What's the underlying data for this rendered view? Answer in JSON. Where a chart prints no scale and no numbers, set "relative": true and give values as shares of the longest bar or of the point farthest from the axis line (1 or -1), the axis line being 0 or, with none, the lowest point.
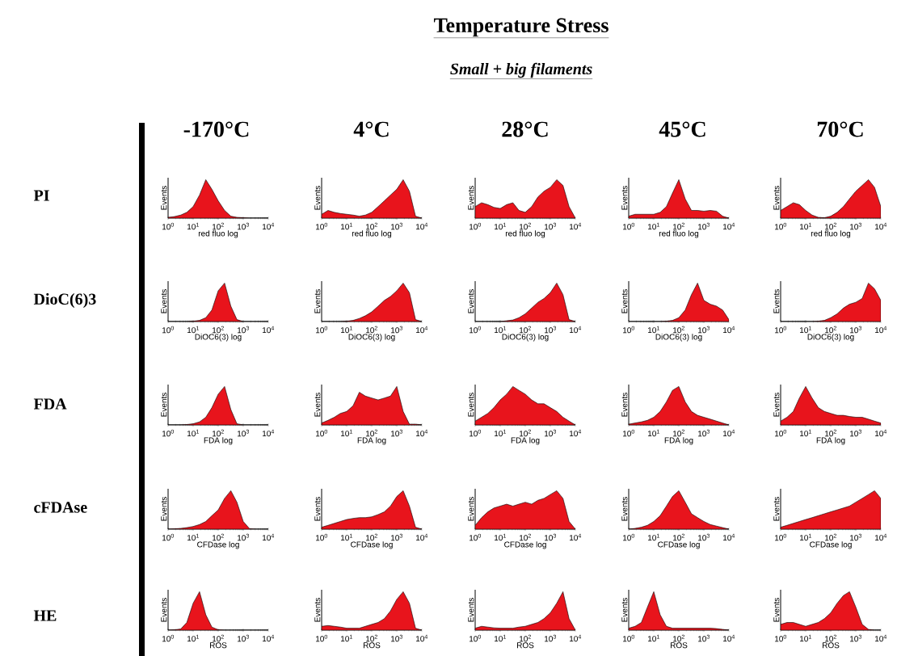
{
  "chart_data": [
    {
      "type": "other",
      "title": "Temperature Stress",
      "subtitle": "Small + big filaments",
      "annotations": [
        "-170°C",
        "4°C",
        "28°C",
        "45°C",
        "70°C",
        "PI",
        "DioC(6)3",
        "FDA",
        "cFDAse",
        "HE"
      ]
    },
    {
      "type": "area",
      "relative": true,
      "color": "#e8141c",
      "xlabel": "red fluo log",
      "ylabel": "Events",
      "log": "x",
      "tick_labels": "x",
      "xlim": [
        1,
        10000
      ],
      "xticks": [
        {
          "value": 1,
          "label": "10$^{0}$"
        },
        {
          "value": 10,
          "label": "10$^{1}$"
        },
        {
          "value": 100,
          "label": "10$^{2}$"
        },
        {
          "value": 1000,
          "label": "10$^{3}$"
        },
        {
          "value": 10000,
          "label": "10$^{4}$"
        }
      ],
      "x": [
        1,
        1.8,
        3.2,
        5.6,
        10,
        18,
        32,
        56,
        100,
        180,
        320,
        560,
        1000,
        1800,
        3200,
        5600,
        10000
      ],
      "values": [
        0.02,
        0.04,
        0.08,
        0.15,
        0.3,
        0.6,
        1,
        0.75,
        0.45,
        0.2,
        0.05,
        0.02,
        0.01,
        0,
        0,
        0,
        0
      ]
    },
    {
      "type": "area",
      "relative": true,
      "color": "#e8141c",
      "xlabel": "red fluo log",
      "ylabel": "Events",
      "log": "x",
      "tick_labels": "x",
      "xlim": [
        1,
        10000
      ],
      "xticks": [
        {
          "value": 1,
          "label": "10$^{0}$"
        },
        {
          "value": 10,
          "label": "10$^{1}$"
        },
        {
          "value": 100,
          "label": "10$^{2}$"
        },
        {
          "value": 1000,
          "label": "10$^{3}$"
        },
        {
          "value": 10000,
          "label": "10$^{4}$"
        }
      ],
      "x": [
        1,
        1.8,
        3.2,
        5.6,
        10,
        18,
        32,
        56,
        100,
        180,
        320,
        560,
        1000,
        1800,
        3200,
        5600,
        10000
      ],
      "values": [
        0.1,
        0.2,
        0.15,
        0.12,
        0.1,
        0.08,
        0.05,
        0.08,
        0.15,
        0.3,
        0.45,
        0.6,
        0.75,
        1,
        0.7,
        0.05,
        0
      ]
    },
    {
      "type": "area",
      "relative": true,
      "color": "#e8141c",
      "xlabel": "red fluo log",
      "ylabel": "Events",
      "log": "x",
      "tick_labels": "x",
      "xlim": [
        1,
        10000
      ],
      "xticks": [
        {
          "value": 1,
          "label": "10$^{0}$"
        },
        {
          "value": 10,
          "label": "10$^{1}$"
        },
        {
          "value": 100,
          "label": "10$^{2}$"
        },
        {
          "value": 1000,
          "label": "10$^{3}$"
        },
        {
          "value": 10000,
          "label": "10$^{4}$"
        }
      ],
      "x": [
        1,
        1.8,
        3.2,
        5.6,
        10,
        18,
        32,
        56,
        100,
        180,
        320,
        560,
        1000,
        1800,
        3200,
        5600,
        10000
      ],
      "values": [
        0.3,
        0.4,
        0.35,
        0.28,
        0.25,
        0.35,
        0.4,
        0.2,
        0.15,
        0.3,
        0.55,
        0.7,
        0.8,
        1,
        0.85,
        0.3,
        0
      ]
    },
    {
      "type": "area",
      "relative": true,
      "color": "#e8141c",
      "xlabel": "red fluo log",
      "ylabel": "Events",
      "log": "x",
      "tick_labels": "x",
      "xlim": [
        1,
        10000
      ],
      "xticks": [
        {
          "value": 1,
          "label": "10$^{0}$"
        },
        {
          "value": 10,
          "label": "10$^{1}$"
        },
        {
          "value": 100,
          "label": "10$^{2}$"
        },
        {
          "value": 1000,
          "label": "10$^{3}$"
        },
        {
          "value": 10000,
          "label": "10$^{4}$"
        }
      ],
      "x": [
        1,
        1.8,
        3.2,
        5.6,
        10,
        18,
        32,
        56,
        100,
        180,
        320,
        560,
        1000,
        1800,
        3200,
        5600,
        10000
      ],
      "values": [
        0.05,
        0.1,
        0.1,
        0.1,
        0.1,
        0.15,
        0.3,
        0.65,
        1,
        0.5,
        0.2,
        0.2,
        0.18,
        0.2,
        0.18,
        0.05,
        0
      ]
    },
    {
      "type": "area",
      "relative": true,
      "color": "#e8141c",
      "xlabel": "red fluo log",
      "ylabel": "Events",
      "log": "x",
      "tick_labels": "x",
      "xlim": [
        1,
        10000
      ],
      "xticks": [
        {
          "value": 1,
          "label": "10$^{0}$"
        },
        {
          "value": 10,
          "label": "10$^{1}$"
        },
        {
          "value": 100,
          "label": "10$^{2}$"
        },
        {
          "value": 1000,
          "label": "10$^{3}$"
        },
        {
          "value": 10000,
          "label": "10$^{4}$"
        }
      ],
      "x": [
        1,
        1.8,
        3.2,
        5.6,
        10,
        18,
        32,
        56,
        100,
        180,
        320,
        560,
        1000,
        1800,
        3200,
        5600,
        10000
      ],
      "values": [
        0.2,
        0.3,
        0.4,
        0.35,
        0.2,
        0.08,
        0.02,
        0.01,
        0.05,
        0.15,
        0.3,
        0.5,
        0.7,
        0.85,
        1,
        0.8,
        0.3
      ]
    },
    {
      "type": "area",
      "relative": true,
      "color": "#e8141c",
      "xlabel": "DiOC6(3) log",
      "ylabel": "Events",
      "log": "x",
      "tick_labels": "x",
      "xlim": [
        1,
        10000
      ],
      "xticks": [
        {
          "value": 1,
          "label": "10$^{0}$"
        },
        {
          "value": 10,
          "label": "10$^{1}$"
        },
        {
          "value": 100,
          "label": "10$^{2}$"
        },
        {
          "value": 1000,
          "label": "10$^{3}$"
        },
        {
          "value": 10000,
          "label": "10$^{4}$"
        }
      ],
      "x": [
        1,
        1.8,
        3.2,
        5.6,
        10,
        18,
        32,
        56,
        100,
        180,
        320,
        560,
        1000,
        1800,
        3200,
        5600,
        10000
      ],
      "values": [
        0,
        0,
        0,
        0,
        0.01,
        0.03,
        0.1,
        0.3,
        0.8,
        1,
        0.4,
        0.05,
        0,
        0,
        0,
        0,
        0
      ]
    },
    {
      "type": "area",
      "relative": true,
      "color": "#e8141c",
      "xlabel": "DiOC6(3) log",
      "ylabel": "Events",
      "log": "x",
      "tick_labels": "x",
      "xlim": [
        1,
        10000
      ],
      "xticks": [
        {
          "value": 1,
          "label": "10$^{0}$"
        },
        {
          "value": 10,
          "label": "10$^{1}$"
        },
        {
          "value": 100,
          "label": "10$^{2}$"
        },
        {
          "value": 1000,
          "label": "10$^{3}$"
        },
        {
          "value": 10000,
          "label": "10$^{4}$"
        }
      ],
      "x": [
        1,
        1.8,
        3.2,
        5.6,
        10,
        18,
        32,
        56,
        100,
        180,
        320,
        560,
        1000,
        1800,
        3200,
        5600,
        10000
      ],
      "values": [
        0,
        0,
        0,
        0,
        0.01,
        0.03,
        0.08,
        0.15,
        0.25,
        0.4,
        0.55,
        0.65,
        0.8,
        1,
        0.75,
        0.05,
        0
      ]
    },
    {
      "type": "area",
      "relative": true,
      "color": "#e8141c",
      "xlabel": "DiOC6(3) log",
      "ylabel": "Events",
      "log": "x",
      "tick_labels": "x",
      "xlim": [
        1,
        10000
      ],
      "xticks": [
        {
          "value": 1,
          "label": "10$^{0}$"
        },
        {
          "value": 10,
          "label": "10$^{1}$"
        },
        {
          "value": 100,
          "label": "10$^{2}$"
        },
        {
          "value": 1000,
          "label": "10$^{3}$"
        },
        {
          "value": 10000,
          "label": "10$^{4}$"
        }
      ],
      "x": [
        1,
        1.8,
        3.2,
        5.6,
        10,
        18,
        32,
        56,
        100,
        180,
        320,
        560,
        1000,
        1800,
        3200,
        5600,
        10000
      ],
      "values": [
        0,
        0,
        0,
        0,
        0,
        0.02,
        0.04,
        0.1,
        0.2,
        0.35,
        0.5,
        0.6,
        0.75,
        1,
        0.7,
        0.05,
        0
      ]
    },
    {
      "type": "area",
      "relative": true,
      "color": "#e8141c",
      "xlabel": "DiOC6(3) log",
      "ylabel": "Events",
      "log": "x",
      "tick_labels": "x",
      "xlim": [
        1,
        10000
      ],
      "xticks": [
        {
          "value": 1,
          "label": "10$^{0}$"
        },
        {
          "value": 10,
          "label": "10$^{1}$"
        },
        {
          "value": 100,
          "label": "10$^{2}$"
        },
        {
          "value": 1000,
          "label": "10$^{3}$"
        },
        {
          "value": 10000,
          "label": "10$^{4}$"
        }
      ],
      "x": [
        1,
        1.8,
        3.2,
        5.6,
        10,
        18,
        32,
        56,
        100,
        180,
        320,
        560,
        1000,
        1800,
        3200,
        5600,
        10000
      ],
      "values": [
        0,
        0,
        0,
        0,
        0,
        0,
        0.01,
        0.03,
        0.1,
        0.3,
        0.7,
        1,
        0.55,
        0.45,
        0.4,
        0.3,
        0.05
      ]
    },
    {
      "type": "area",
      "relative": true,
      "color": "#e8141c",
      "xlabel": "DiOC6(3) log",
      "ylabel": "Events",
      "log": "x",
      "tick_labels": "x",
      "xlim": [
        1,
        10000
      ],
      "xticks": [
        {
          "value": 1,
          "label": "10$^{0}$"
        },
        {
          "value": 10,
          "label": "10$^{1}$"
        },
        {
          "value": 100,
          "label": "10$^{2}$"
        },
        {
          "value": 1000,
          "label": "10$^{3}$"
        },
        {
          "value": 10000,
          "label": "10$^{4}$"
        }
      ],
      "x": [
        1,
        1.8,
        3.2,
        5.6,
        10,
        18,
        32,
        56,
        100,
        180,
        320,
        560,
        1000,
        1800,
        3200,
        5600,
        10000
      ],
      "values": [
        0,
        0,
        0,
        0,
        0,
        0,
        0.01,
        0.03,
        0.1,
        0.2,
        0.35,
        0.45,
        0.5,
        0.6,
        1,
        0.85,
        0.55
      ]
    },
    {
      "type": "area",
      "relative": true,
      "color": "#e8141c",
      "xlabel": "FDA log",
      "ylabel": "Events",
      "log": "x",
      "tick_labels": "x",
      "xlim": [
        1,
        10000
      ],
      "xticks": [
        {
          "value": 1,
          "label": "10$^{0}$"
        },
        {
          "value": 10,
          "label": "10$^{1}$"
        },
        {
          "value": 100,
          "label": "10$^{2}$"
        },
        {
          "value": 1000,
          "label": "10$^{3}$"
        },
        {
          "value": 10000,
          "label": "10$^{4}$"
        }
      ],
      "x": [
        1,
        1.8,
        3.2,
        5.6,
        10,
        18,
        32,
        56,
        100,
        180,
        320,
        560,
        1000,
        1800,
        3200,
        5600,
        10000
      ],
      "values": [
        0,
        0,
        0,
        0.01,
        0.03,
        0.08,
        0.2,
        0.45,
        0.8,
        1,
        0.4,
        0.03,
        0,
        0,
        0,
        0,
        0
      ]
    },
    {
      "type": "area",
      "relative": true,
      "color": "#e8141c",
      "xlabel": "FDA log",
      "ylabel": "Events",
      "log": "x",
      "tick_labels": "x",
      "xlim": [
        1,
        10000
      ],
      "xticks": [
        {
          "value": 1,
          "label": "10$^{0}$"
        },
        {
          "value": 10,
          "label": "10$^{1}$"
        },
        {
          "value": 100,
          "label": "10$^{2}$"
        },
        {
          "value": 1000,
          "label": "10$^{3}$"
        },
        {
          "value": 10000,
          "label": "10$^{4}$"
        }
      ],
      "x": [
        1,
        1.8,
        3.2,
        5.6,
        10,
        18,
        32,
        56,
        100,
        180,
        320,
        560,
        1000,
        1800,
        3200,
        5600,
        10000
      ],
      "values": [
        0.05,
        0.12,
        0.2,
        0.3,
        0.35,
        0.5,
        0.85,
        0.75,
        0.7,
        0.65,
        0.7,
        0.75,
        1,
        0.35,
        0.02,
        0.02,
        0
      ]
    },
    {
      "type": "area",
      "relative": true,
      "color": "#e8141c",
      "xlabel": "FDA log",
      "ylabel": "Events",
      "log": "x",
      "tick_labels": "x",
      "xlim": [
        1,
        10000
      ],
      "xticks": [
        {
          "value": 1,
          "label": "10$^{0}$"
        },
        {
          "value": 10,
          "label": "10$^{1}$"
        },
        {
          "value": 100,
          "label": "10$^{2}$"
        },
        {
          "value": 1000,
          "label": "10$^{3}$"
        },
        {
          "value": 10000,
          "label": "10$^{4}$"
        }
      ],
      "x": [
        1,
        1.8,
        3.2,
        5.6,
        10,
        18,
        32,
        56,
        100,
        180,
        320,
        560,
        1000,
        1800,
        3200,
        5600,
        10000
      ],
      "values": [
        0.1,
        0.2,
        0.3,
        0.45,
        0.65,
        0.8,
        1,
        0.9,
        0.8,
        0.65,
        0.55,
        0.55,
        0.45,
        0.35,
        0.2,
        0.1,
        0
      ]
    },
    {
      "type": "area",
      "relative": true,
      "color": "#e8141c",
      "xlabel": "FDA log",
      "ylabel": "Events",
      "log": "x",
      "tick_labels": "x",
      "xlim": [
        1,
        10000
      ],
      "xticks": [
        {
          "value": 1,
          "label": "10$^{0}$"
        },
        {
          "value": 10,
          "label": "10$^{1}$"
        },
        {
          "value": 100,
          "label": "10$^{2}$"
        },
        {
          "value": 1000,
          "label": "10$^{3}$"
        },
        {
          "value": 10000,
          "label": "10$^{4}$"
        }
      ],
      "x": [
        1,
        1.8,
        3.2,
        5.6,
        10,
        18,
        32,
        56,
        100,
        180,
        320,
        560,
        1000,
        1800,
        3200,
        5600,
        10000
      ],
      "values": [
        0.02,
        0.05,
        0.08,
        0.12,
        0.2,
        0.35,
        0.6,
        0.9,
        1,
        0.6,
        0.35,
        0.25,
        0.2,
        0.15,
        0.1,
        0.05,
        0
      ]
    },
    {
      "type": "area",
      "relative": true,
      "color": "#e8141c",
      "xlabel": "FDA log",
      "ylabel": "Events",
      "log": "x",
      "tick_labels": "x",
      "xlim": [
        1,
        10000
      ],
      "xticks": [
        {
          "value": 1,
          "label": "10$^{0}$"
        },
        {
          "value": 10,
          "label": "10$^{1}$"
        },
        {
          "value": 100,
          "label": "10$^{2}$"
        },
        {
          "value": 1000,
          "label": "10$^{3}$"
        },
        {
          "value": 10000,
          "label": "10$^{4}$"
        }
      ],
      "x": [
        1,
        1.8,
        3.2,
        5.6,
        10,
        18,
        32,
        56,
        100,
        180,
        320,
        560,
        1000,
        1800,
        3200,
        5600,
        10000
      ],
      "values": [
        0.1,
        0.2,
        0.35,
        0.7,
        1,
        0.7,
        0.45,
        0.35,
        0.3,
        0.25,
        0.25,
        0.22,
        0.2,
        0.2,
        0.15,
        0.1,
        0.05
      ]
    },
    {
      "type": "area",
      "relative": true,
      "color": "#e8141c",
      "xlabel": "CFDase log",
      "ylabel": "Events",
      "log": "x",
      "tick_labels": "x",
      "xlim": [
        1,
        10000
      ],
      "xticks": [
        {
          "value": 1,
          "label": "10$^{0}$"
        },
        {
          "value": 10,
          "label": "10$^{1}$"
        },
        {
          "value": 100,
          "label": "10$^{2}$"
        },
        {
          "value": 1000,
          "label": "10$^{3}$"
        },
        {
          "value": 10000,
          "label": "10$^{4}$"
        }
      ],
      "x": [
        1,
        1.8,
        3.2,
        5.6,
        10,
        18,
        32,
        56,
        100,
        180,
        320,
        560,
        1000,
        1800,
        3200,
        5600,
        10000
      ],
      "values": [
        0,
        0.01,
        0.02,
        0.04,
        0.07,
        0.12,
        0.2,
        0.35,
        0.5,
        0.8,
        1,
        0.7,
        0.2,
        0.01,
        0,
        0,
        0
      ]
    },
    {
      "type": "area",
      "relative": true,
      "color": "#e8141c",
      "xlabel": "CFDase log",
      "ylabel": "Events",
      "log": "x",
      "tick_labels": "x",
      "xlim": [
        1,
        10000
      ],
      "xticks": [
        {
          "value": 1,
          "label": "10$^{0}$"
        },
        {
          "value": 10,
          "label": "10$^{1}$"
        },
        {
          "value": 100,
          "label": "10$^{2}$"
        },
        {
          "value": 1000,
          "label": "10$^{3}$"
        },
        {
          "value": 10000,
          "label": "10$^{4}$"
        }
      ],
      "x": [
        1,
        1.8,
        3.2,
        5.6,
        10,
        18,
        32,
        56,
        100,
        180,
        320,
        560,
        1000,
        1800,
        3200,
        5600,
        10000
      ],
      "values": [
        0.05,
        0.1,
        0.15,
        0.2,
        0.25,
        0.28,
        0.3,
        0.3,
        0.32,
        0.38,
        0.45,
        0.6,
        0.85,
        1,
        0.6,
        0.05,
        0
      ]
    },
    {
      "type": "area",
      "relative": true,
      "color": "#e8141c",
      "xlabel": "CFDase log",
      "ylabel": "Events",
      "log": "x",
      "tick_labels": "x",
      "xlim": [
        1,
        10000
      ],
      "xticks": [
        {
          "value": 1,
          "label": "10$^{0}$"
        },
        {
          "value": 10,
          "label": "10$^{1}$"
        },
        {
          "value": 100,
          "label": "10$^{2}$"
        },
        {
          "value": 1000,
          "label": "10$^{3}$"
        },
        {
          "value": 10000,
          "label": "10$^{4}$"
        }
      ],
      "x": [
        1,
        1.8,
        3.2,
        5.6,
        10,
        18,
        32,
        56,
        100,
        180,
        320,
        560,
        1000,
        1800,
        3200,
        5600,
        10000
      ],
      "values": [
        0.1,
        0.3,
        0.45,
        0.55,
        0.6,
        0.65,
        0.6,
        0.65,
        0.7,
        0.65,
        0.75,
        0.8,
        0.9,
        1,
        0.8,
        0.2,
        0
      ]
    },
    {
      "type": "area",
      "relative": true,
      "color": "#e8141c",
      "xlabel": "CFDase log",
      "ylabel": "Events",
      "log": "x",
      "tick_labels": "x",
      "xlim": [
        1,
        10000
      ],
      "xticks": [
        {
          "value": 1,
          "label": "10$^{0}$"
        },
        {
          "value": 10,
          "label": "10$^{1}$"
        },
        {
          "value": 100,
          "label": "10$^{2}$"
        },
        {
          "value": 1000,
          "label": "10$^{3}$"
        },
        {
          "value": 10000,
          "label": "10$^{4}$"
        }
      ],
      "x": [
        1,
        1.8,
        3.2,
        5.6,
        10,
        18,
        32,
        56,
        100,
        180,
        320,
        560,
        1000,
        1800,
        3200,
        5600,
        10000
      ],
      "values": [
        0,
        0.02,
        0.05,
        0.1,
        0.2,
        0.35,
        0.6,
        0.85,
        1,
        0.7,
        0.4,
        0.3,
        0.2,
        0.12,
        0.08,
        0.04,
        0
      ]
    },
    {
      "type": "area",
      "relative": true,
      "color": "#e8141c",
      "xlabel": "CFDase log",
      "ylabel": "Events",
      "log": "x",
      "tick_labels": "x",
      "xlim": [
        1,
        10000
      ],
      "xticks": [
        {
          "value": 1,
          "label": "10$^{0}$"
        },
        {
          "value": 10,
          "label": "10$^{1}$"
        },
        {
          "value": 100,
          "label": "10$^{2}$"
        },
        {
          "value": 1000,
          "label": "10$^{3}$"
        },
        {
          "value": 10000,
          "label": "10$^{4}$"
        }
      ],
      "x": [
        1,
        1.8,
        3.2,
        5.6,
        10,
        18,
        32,
        56,
        100,
        180,
        320,
        560,
        1000,
        1800,
        3200,
        5600,
        10000
      ],
      "values": [
        0.05,
        0.1,
        0.15,
        0.2,
        0.25,
        0.3,
        0.35,
        0.4,
        0.45,
        0.5,
        0.55,
        0.6,
        0.7,
        0.8,
        0.9,
        1,
        0.8
      ]
    },
    {
      "type": "area",
      "relative": true,
      "color": "#e8141c",
      "xlabel": "ROS",
      "ylabel": "Events",
      "log": "x",
      "tick_labels": "x",
      "xlim": [
        1,
        10000
      ],
      "xticks": [
        {
          "value": 1,
          "label": "10$^{0}$"
        },
        {
          "value": 10,
          "label": "10$^{1}$"
        },
        {
          "value": 100,
          "label": "10$^{2}$"
        },
        {
          "value": 1000,
          "label": "10$^{3}$"
        },
        {
          "value": 10000,
          "label": "10$^{4}$"
        }
      ],
      "x": [
        1,
        1.8,
        3.2,
        5.6,
        10,
        18,
        32,
        56,
        100,
        180,
        320,
        560,
        1000,
        1800,
        3200,
        5600,
        10000
      ],
      "values": [
        0,
        0.01,
        0.03,
        0.2,
        0.7,
        1,
        0.4,
        0.08,
        0.01,
        0,
        0,
        0,
        0,
        0,
        0,
        0,
        0
      ]
    },
    {
      "type": "area",
      "relative": true,
      "color": "#e8141c",
      "xlabel": "ROS",
      "ylabel": "Events",
      "log": "x",
      "tick_labels": "x",
      "xlim": [
        1,
        10000
      ],
      "xticks": [
        {
          "value": 1,
          "label": "10$^{0}$"
        },
        {
          "value": 10,
          "label": "10$^{1}$"
        },
        {
          "value": 100,
          "label": "10$^{2}$"
        },
        {
          "value": 1000,
          "label": "10$^{3}$"
        },
        {
          "value": 10000,
          "label": "10$^{4}$"
        }
      ],
      "x": [
        1,
        1.8,
        3.2,
        5.6,
        10,
        18,
        32,
        56,
        100,
        180,
        320,
        560,
        1000,
        1800,
        3200,
        5600,
        10000
      ],
      "values": [
        0.1,
        0.12,
        0.1,
        0.08,
        0.05,
        0.05,
        0.05,
        0.1,
        0.15,
        0.2,
        0.3,
        0.5,
        0.8,
        1,
        0.7,
        0.05,
        0
      ]
    },
    {
      "type": "area",
      "relative": true,
      "color": "#e8141c",
      "xlabel": "ROS",
      "ylabel": "Events",
      "log": "x",
      "tick_labels": "x",
      "xlim": [
        1,
        10000
      ],
      "xticks": [
        {
          "value": 1,
          "label": "10$^{0}$"
        },
        {
          "value": 10,
          "label": "10$^{1}$"
        },
        {
          "value": 100,
          "label": "10$^{2}$"
        },
        {
          "value": 1000,
          "label": "10$^{3}$"
        },
        {
          "value": 10000,
          "label": "10$^{4}$"
        }
      ],
      "x": [
        1,
        1.8,
        3.2,
        5.6,
        10,
        18,
        32,
        56,
        100,
        180,
        320,
        560,
        1000,
        1800,
        3200,
        5600,
        10000
      ],
      "values": [
        0.05,
        0.1,
        0.08,
        0.06,
        0.05,
        0.05,
        0.05,
        0.08,
        0.1,
        0.15,
        0.2,
        0.3,
        0.45,
        0.7,
        1,
        0.3,
        0
      ]
    },
    {
      "type": "area",
      "relative": true,
      "color": "#e8141c",
      "xlabel": "ROS",
      "ylabel": "Events",
      "log": "x",
      "tick_labels": "x",
      "xlim": [
        1,
        10000
      ],
      "xticks": [
        {
          "value": 1,
          "label": "10$^{0}$"
        },
        {
          "value": 10,
          "label": "10$^{1}$"
        },
        {
          "value": 100,
          "label": "10$^{2}$"
        },
        {
          "value": 1000,
          "label": "10$^{3}$"
        },
        {
          "value": 10000,
          "label": "10$^{4}$"
        }
      ],
      "x": [
        1,
        1.8,
        3.2,
        5.6,
        10,
        18,
        32,
        56,
        100,
        180,
        320,
        560,
        1000,
        1800,
        3200,
        5600,
        10000
      ],
      "values": [
        0.05,
        0.1,
        0.2,
        0.6,
        1,
        0.4,
        0.1,
        0.05,
        0.05,
        0.05,
        0.05,
        0.05,
        0.05,
        0.05,
        0.04,
        0.02,
        0
      ]
    },
    {
      "type": "area",
      "relative": true,
      "color": "#e8141c",
      "xlabel": "ROS",
      "ylabel": "Events",
      "log": "x",
      "tick_labels": "x",
      "xlim": [
        1,
        10000
      ],
      "xticks": [
        {
          "value": 1,
          "label": "10$^{0}$"
        },
        {
          "value": 10,
          "label": "10$^{1}$"
        },
        {
          "value": 100,
          "label": "10$^{2}$"
        },
        {
          "value": 1000,
          "label": "10$^{3}$"
        },
        {
          "value": 10000,
          "label": "10$^{4}$"
        }
      ],
      "x": [
        1,
        1.8,
        3.2,
        5.6,
        10,
        18,
        32,
        56,
        100,
        180,
        320,
        560,
        1000,
        1800,
        3200,
        5600,
        10000
      ],
      "values": [
        0.15,
        0.2,
        0.2,
        0.15,
        0.1,
        0.15,
        0.2,
        0.3,
        0.45,
        0.7,
        0.9,
        1,
        0.6,
        0.15,
        0.02,
        0,
        0
      ]
    }
  ]
}
